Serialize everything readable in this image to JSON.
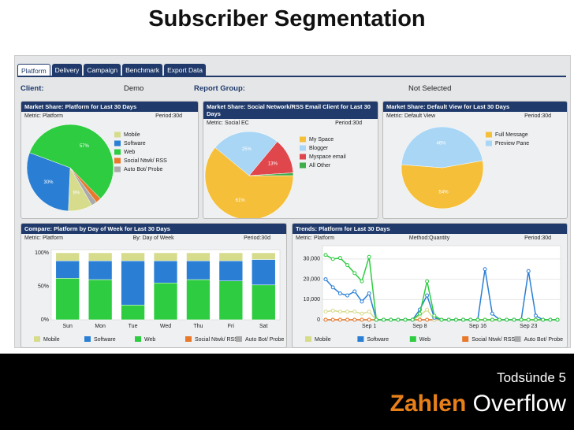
{
  "title": "Subscriber Segmentation",
  "tabs": [
    "Platform",
    "Delivery",
    "Campaign",
    "Benchmark",
    "Export Data"
  ],
  "header": {
    "client_label": "Client:",
    "client": "Demo",
    "group_label": "Report Group:",
    "group": "Not Selected"
  },
  "chart_data": [
    {
      "type": "pie",
      "title": "Market Share: Platform for Last 30 Days",
      "notes": [
        "Metric: Platform",
        "Period:30d"
      ],
      "categories": [
        "Mobile",
        "Software",
        "Web",
        "Social Ntwk/ RSS",
        "Auto Bot/ Probe"
      ],
      "values": [
        9,
        30,
        57,
        2,
        2
      ],
      "value_labels": [
        "9%",
        "30%",
        "57%",
        null,
        null
      ],
      "colors": [
        "#d6dc8c",
        "#2a7fd4",
        "#2ecc40",
        "#e8782a",
        "#aaaaaa"
      ]
    },
    {
      "type": "pie",
      "title": "Market Share: Social Network/RSS Email Client for Last 30 Days",
      "notes": [
        "Metric: Social EC",
        "Period:30d"
      ],
      "categories": [
        "My Space",
        "Blogger",
        "Myspace email",
        "All Other"
      ],
      "values": [
        61,
        25,
        13,
        1
      ],
      "value_labels": [
        "61%",
        "25%",
        "13%",
        null
      ],
      "colors": [
        "#f5bf3a",
        "#a9d6f5",
        "#e0474c",
        "#3fae49"
      ]
    },
    {
      "type": "pie",
      "title": "Market Share: Default View for Last 30 Days",
      "notes": [
        "Metric: Default View",
        "Period:30d"
      ],
      "categories": [
        "Full Message",
        "Preview Pane"
      ],
      "values": [
        54,
        46
      ],
      "value_labels": [
        "54%",
        "46%"
      ],
      "colors": [
        "#f5bf3a",
        "#a9d6f5"
      ]
    },
    {
      "type": "bar",
      "title": "Compare: Platform by Day of Week for Last 30 Days",
      "notes": [
        "Metric: Platform",
        "By: Day of Week",
        "Period:30d"
      ],
      "categories": [
        "Sun",
        "Mon",
        "Tue",
        "Wed",
        "Thu",
        "Fri",
        "Sat"
      ],
      "series": [
        {
          "name": "Mobile",
          "color": "#d6dc8c",
          "values": [
            12,
            12,
            12,
            12,
            12,
            12,
            10
          ]
        },
        {
          "name": "Software",
          "color": "#2a7fd4",
          "values": [
            26,
            28,
            66,
            33,
            28,
            30,
            38
          ]
        },
        {
          "name": "Web",
          "color": "#2ecc40",
          "values": [
            62,
            60,
            22,
            55,
            60,
            58,
            52
          ]
        },
        {
          "name": "Social Ntwk/ RSS",
          "color": "#e8782a",
          "values": [
            0,
            0,
            0,
            0,
            0,
            0,
            0
          ]
        },
        {
          "name": "Auto Bot/ Probe",
          "color": "#aaaaaa",
          "values": [
            0,
            0,
            0,
            0,
            0,
            0,
            0
          ]
        }
      ],
      "ylim": [
        0,
        100
      ],
      "yticks": [
        {
          "value": 0,
          "label": "0%"
        },
        {
          "value": 50,
          "label": "50%"
        },
        {
          "value": 100,
          "label": "100%"
        }
      ]
    },
    {
      "type": "line",
      "title": "Trends: Platform for Last 30 Days",
      "notes": [
        "Metric: Platform",
        "Method:Quantity",
        "Period:30d"
      ],
      "categories": [
        null,
        null,
        null,
        null,
        null,
        null,
        "Sep 1",
        null,
        null,
        null,
        null,
        null,
        null,
        "Sep 8",
        null,
        null,
        null,
        null,
        null,
        null,
        null,
        "Sep 16",
        null,
        null,
        null,
        null,
        null,
        null,
        "Sep 23",
        null,
        null,
        null,
        null
      ],
      "series": [
        {
          "name": "Mobile",
          "color": "#d6dc8c",
          "values": [
            4000,
            4500,
            4000,
            4000,
            4000,
            3000,
            4000,
            0,
            0,
            0,
            0,
            0,
            0,
            2000,
            5000,
            0,
            0,
            0,
            0,
            0,
            0,
            0,
            0,
            0,
            0,
            0,
            0,
            0,
            0,
            0,
            0,
            0,
            0
          ]
        },
        {
          "name": "Software",
          "color": "#2a7fd4",
          "values": [
            20000,
            16000,
            13000,
            12000,
            14000,
            9000,
            13000,
            0,
            0,
            0,
            0,
            0,
            0,
            5000,
            12000,
            1000,
            0,
            0,
            0,
            0,
            0,
            0,
            25000,
            3000,
            0,
            0,
            0,
            0,
            24000,
            2000,
            0,
            0,
            0
          ]
        },
        {
          "name": "Web",
          "color": "#2ecc40",
          "values": [
            32000,
            30000,
            30500,
            27000,
            23000,
            19000,
            31000,
            0,
            0,
            0,
            0,
            0,
            0,
            3000,
            19000,
            2000,
            0,
            0,
            0,
            0,
            0,
            0,
            0,
            0,
            0,
            0,
            0,
            0,
            0,
            0,
            0,
            0,
            0
          ]
        },
        {
          "name": "Social Ntwk/ RSS",
          "color": "#e8782a",
          "values": [
            0,
            0,
            0,
            0,
            0,
            0,
            0,
            0,
            0,
            0,
            0,
            0,
            0,
            0,
            0,
            0,
            0,
            0,
            0,
            0,
            0,
            0,
            0,
            0,
            0,
            0,
            0,
            0,
            0,
            0,
            0,
            0,
            0
          ]
        },
        {
          "name": "Auto Bot/ Probe",
          "color": "#aaaaaa",
          "values": [
            0,
            0,
            0,
            0,
            0,
            0,
            0,
            0,
            0,
            0,
            0,
            0,
            0,
            0,
            0,
            0,
            0,
            0,
            0,
            0,
            0,
            0,
            0,
            0,
            0,
            0,
            0,
            0,
            0,
            0,
            0,
            0,
            0
          ]
        }
      ],
      "ylim": [
        0,
        35000
      ],
      "yticks": [
        0,
        {
          "value": 10000,
          "label": "10,000"
        },
        {
          "value": 20000,
          "label": "20,000"
        },
        {
          "value": 30000,
          "label": "30,000"
        }
      ],
      "grid": true
    }
  ],
  "footer": {
    "number": "Todsünde 5",
    "word1": "Zahlen",
    "word2": "Overflow"
  }
}
